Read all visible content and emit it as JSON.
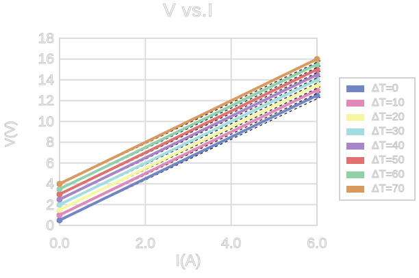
{
  "chart_data": {
    "type": "line",
    "title": "V vs.I",
    "xlabel": "I(A)",
    "ylabel": "V(V)",
    "xlim": [
      0,
      6
    ],
    "ylim": [
      0,
      18
    ],
    "xticks": [
      "0.0",
      "2.0",
      "4.0",
      "6.0"
    ],
    "xtick_values": [
      0,
      2,
      4,
      6
    ],
    "ytick_values": [
      0,
      2,
      4,
      6,
      8,
      10,
      12,
      14,
      16,
      18
    ],
    "grid": true,
    "legend_position": "right",
    "x": [
      0,
      6
    ],
    "series": [
      {
        "name": "ΔT=0",
        "color": "#7285C6",
        "values": [
          0.5,
          12.5
        ]
      },
      {
        "name": "ΔT=10",
        "color": "#E289BB",
        "values": [
          1.0,
          13.0
        ]
      },
      {
        "name": "ΔT=20",
        "color": "#F7F7A2",
        "values": [
          1.5,
          13.5
        ]
      },
      {
        "name": "ΔT=30",
        "color": "#A2DEDF",
        "values": [
          2.0,
          14.0
        ]
      },
      {
        "name": "ΔT=40",
        "color": "#A884C8",
        "values": [
          2.5,
          14.5
        ]
      },
      {
        "name": "ΔT=50",
        "color": "#E17070",
        "values": [
          3.0,
          15.0
        ]
      },
      {
        "name": "ΔT=60",
        "color": "#92D0AA",
        "values": [
          3.5,
          15.5
        ]
      },
      {
        "name": "ΔT=70",
        "color": "#D9995F",
        "values": [
          4.0,
          16.0
        ]
      }
    ],
    "trendline_style": {
      "color": "#222222",
      "dash": "4 4"
    },
    "frame_color": "#d9d9d9",
    "grid_color": "#dcdcdc"
  }
}
